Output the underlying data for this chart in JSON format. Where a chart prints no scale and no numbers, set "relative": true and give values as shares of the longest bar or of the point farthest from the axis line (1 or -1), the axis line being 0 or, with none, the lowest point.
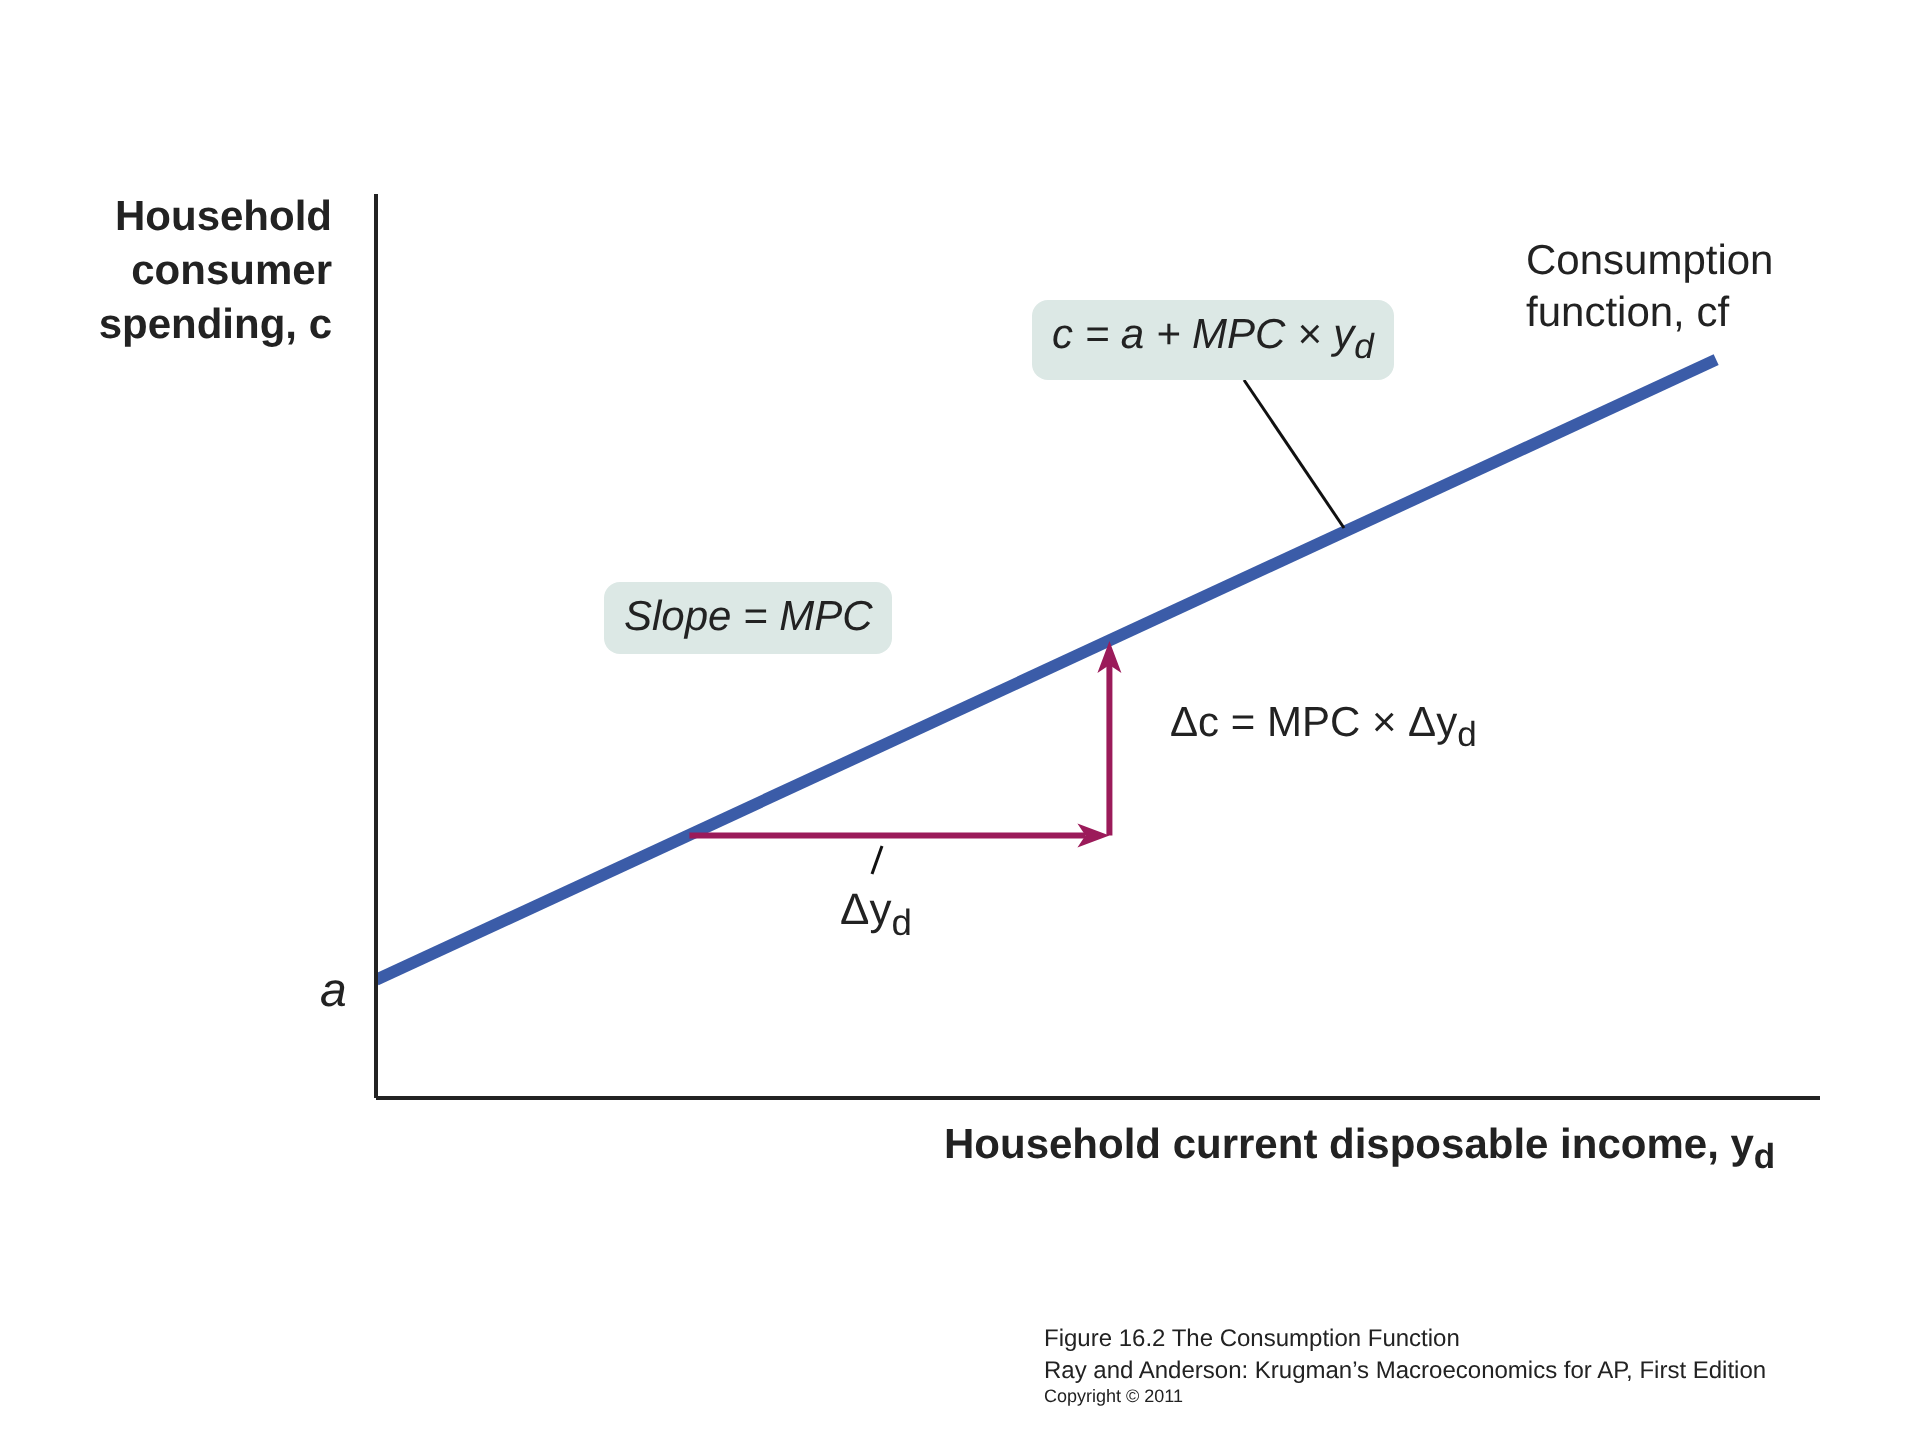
{
  "chart_data": {
    "type": "line",
    "relative": true,
    "xlabel": "Household current disposable income, y$_{d}$",
    "ylabel": "Household consumer spending, c",
    "categories": [
      null,
      null
    ],
    "series": [
      {
        "name": "Consumption function, cf",
        "color": "#3b5ca8",
        "values": [
          0.16,
          1
        ]
      }
    ],
    "annotations": [
      "c = a + MPC × y$_{d}$",
      "Slope = MPC",
      "Δc = MPC × Δy$_{d}$",
      "Δy$_{d}$",
      "a",
      "Figure 16.2  The Consumption Function",
      "Ray and Anderson: Krugman’s Macroeconomics for AP, First Edition",
      "Copyright © 2011"
    ]
  }
}
